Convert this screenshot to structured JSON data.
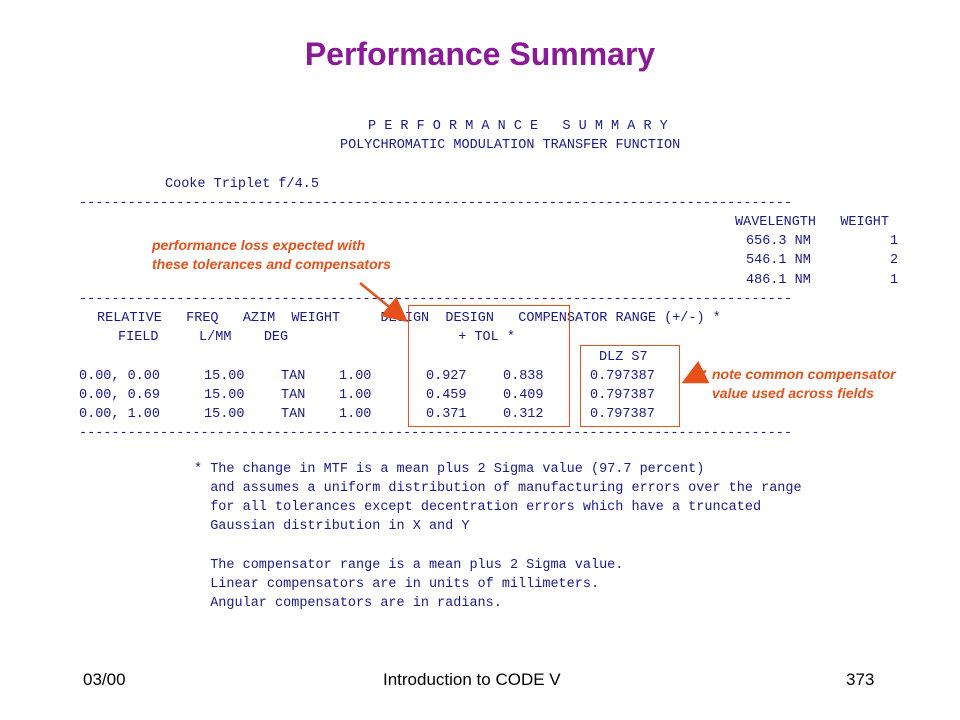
{
  "slide": {
    "title": "Performance Summary",
    "footer": {
      "left": "03/00",
      "center": "Introduction to CODE V",
      "right": "373"
    }
  },
  "report": {
    "heading1": "P E R F O R M A N C E   S U M M A R Y",
    "heading2": "POLYCHROMATIC MODULATION TRANSFER FUNCTION",
    "lens_name": "Cooke Triplet f/4.5",
    "dashes": "----------------------------------------------------------------------------------------",
    "wavelength_header": "WAVELENGTH   WEIGHT",
    "wavelengths": [
      {
        "nm": "656.3 NM",
        "weight": "1"
      },
      {
        "nm": "546.1 NM",
        "weight": "2"
      },
      {
        "nm": "486.1 NM",
        "weight": "1"
      }
    ],
    "col_header1": "RELATIVE   FREQ   AZIM  WEIGHT     DESIGN  DESIGN   COMPENSATOR RANGE (+/-) *",
    "col_header2": "FIELD     L/MM    DEG                     + TOL *",
    "compensator_label": "DLZ S7",
    "rows": [
      {
        "field": "0.00, 0.00",
        "freq": "15.00",
        "azim": "TAN",
        "weight": "1.00",
        "design": "0.927",
        "design_tol": "0.838",
        "comp": "0.797387"
      },
      {
        "field": "0.00, 0.69",
        "freq": "15.00",
        "azim": "TAN",
        "weight": "1.00",
        "design": "0.459",
        "design_tol": "0.409",
        "comp": "0.797387"
      },
      {
        "field": "0.00, 1.00",
        "freq": "15.00",
        "azim": "TAN",
        "weight": "1.00",
        "design": "0.371",
        "design_tol": "0.312",
        "comp": "0.797387"
      }
    ],
    "footnotes": [
      "* The change in MTF is a mean plus 2 Sigma value (97.7 percent)",
      "  and assumes a uniform distribution of manufacturing errors over the range",
      "  for all tolerances except decentration errors which have a truncated",
      "  Gaussian distribution in X and Y",
      "",
      "  The compensator range is a mean plus 2 Sigma value.",
      "  Linear compensators are in units of millimeters.",
      "  Angular compensators are in radians."
    ]
  },
  "annotations": {
    "left_note_line1": "performance loss expected with",
    "left_note_line2": "these tolerances and compensators",
    "right_note_line1": "note common compensator",
    "right_note_line2": "value used across fields",
    "color": "#e8501a"
  }
}
